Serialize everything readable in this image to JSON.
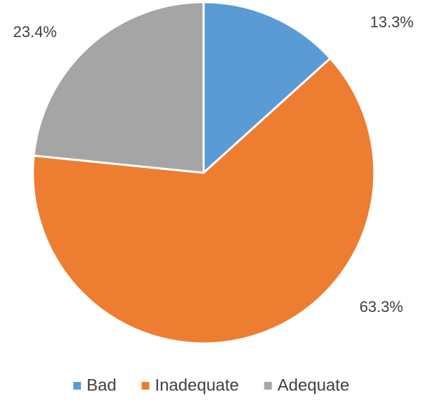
{
  "chart_data": {
    "type": "pie",
    "categories": [
      "Bad",
      "Inadequate",
      "Adequate"
    ],
    "values": [
      13.3,
      63.3,
      23.4
    ],
    "value_labels": [
      "13.3%",
      "63.3%",
      "23.4%"
    ],
    "colors": [
      "#5b9bd5",
      "#ed7d31",
      "#a5a5a5"
    ],
    "legend": "bottom"
  }
}
